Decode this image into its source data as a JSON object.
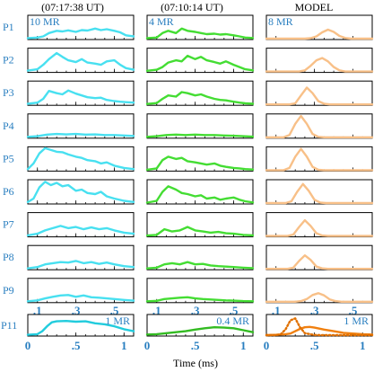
{
  "chart_data": {
    "type": "line",
    "column_titles": [
      "(07:17:38 UT)",
      "(07:10:14 UT)",
      "MODEL"
    ],
    "row_labels": [
      "P1",
      "P2",
      "P3",
      "P4",
      "P5",
      "P6",
      "P7",
      "P8",
      "P9"
    ],
    "bottom_row_label": "P11",
    "xlabel": "Time (ms)",
    "xlim_upper": [
      0.05,
      0.6
    ],
    "xlim_bottom": [
      0,
      1.1
    ],
    "upper_ticks": [
      ".1",
      ".3",
      ".5"
    ],
    "upper_tick_values": [
      0.1,
      0.3,
      0.5
    ],
    "bottom_ticks": [
      "0",
      ".5",
      "1"
    ],
    "bottom_tick_values": [
      0,
      0.5,
      1
    ],
    "ylim": [
      0,
      1
    ],
    "scale_labels": [
      "10 MR",
      "4 MR",
      "8 MR"
    ],
    "bottom_scale_labels": [
      "1 MR",
      "0.4 MR",
      "1 MR"
    ],
    "colors": [
      "#48e0f0",
      "#44dd33",
      "#f8c088"
    ],
    "bottom_colors": [
      "#22ccdd",
      "#33bb22",
      "#f08010"
    ],
    "bottom_dotted_color": "#e07000",
    "panels": [
      [
        {
          "x": [
            0.05,
            0.1,
            0.13,
            0.16,
            0.2,
            0.23,
            0.26,
            0.3,
            0.33,
            0.36,
            0.4,
            0.43,
            0.46,
            0.5,
            0.53,
            0.56,
            0.6
          ],
          "y": [
            0.02,
            0.05,
            0.1,
            0.25,
            0.35,
            0.32,
            0.37,
            0.3,
            0.38,
            0.36,
            0.45,
            0.38,
            0.42,
            0.35,
            0.28,
            0.15,
            0.1
          ]
        },
        {
          "x": [
            0.05,
            0.1,
            0.13,
            0.16,
            0.2,
            0.23,
            0.26,
            0.3,
            0.33,
            0.36,
            0.4,
            0.43,
            0.46,
            0.5,
            0.53,
            0.56,
            0.6
          ],
          "y": [
            0.04,
            0.1,
            0.3,
            0.55,
            0.82,
            0.65,
            0.5,
            0.42,
            0.55,
            0.4,
            0.35,
            0.3,
            0.45,
            0.5,
            0.3,
            0.15,
            0.08
          ]
        },
        {
          "x": [
            0.05,
            0.1,
            0.13,
            0.16,
            0.2,
            0.23,
            0.26,
            0.3,
            0.33,
            0.36,
            0.4,
            0.43,
            0.46,
            0.5,
            0.53,
            0.56,
            0.6
          ],
          "y": [
            0.03,
            0.08,
            0.25,
            0.6,
            0.5,
            0.45,
            0.62,
            0.48,
            0.4,
            0.32,
            0.28,
            0.3,
            0.2,
            0.15,
            0.12,
            0.1,
            0.08
          ]
        },
        {
          "x": [
            0.05,
            0.1,
            0.15,
            0.2,
            0.25,
            0.3,
            0.35,
            0.4,
            0.45,
            0.5,
            0.55,
            0.6
          ],
          "y": [
            0.02,
            0.05,
            0.12,
            0.15,
            0.13,
            0.15,
            0.12,
            0.13,
            0.1,
            0.1,
            0.08,
            0.06
          ]
        },
        {
          "x": [
            0.05,
            0.08,
            0.11,
            0.14,
            0.17,
            0.2,
            0.23,
            0.26,
            0.3,
            0.33,
            0.36,
            0.4,
            0.43,
            0.46,
            0.5,
            0.55,
            0.6
          ],
          "y": [
            0.05,
            0.3,
            0.75,
            0.98,
            0.9,
            0.82,
            0.8,
            0.7,
            0.6,
            0.55,
            0.45,
            0.4,
            0.3,
            0.35,
            0.2,
            0.1,
            0.05
          ]
        },
        {
          "x": [
            0.05,
            0.08,
            0.11,
            0.14,
            0.17,
            0.2,
            0.23,
            0.26,
            0.3,
            0.33,
            0.36,
            0.4,
            0.43,
            0.46,
            0.5,
            0.55,
            0.6
          ],
          "y": [
            0.05,
            0.2,
            0.7,
            0.95,
            0.8,
            0.9,
            0.75,
            0.8,
            0.55,
            0.6,
            0.45,
            0.4,
            0.5,
            0.3,
            0.2,
            0.1,
            0.05
          ]
        },
        {
          "x": [
            0.05,
            0.1,
            0.14,
            0.18,
            0.22,
            0.26,
            0.3,
            0.34,
            0.38,
            0.42,
            0.46,
            0.5,
            0.55,
            0.6
          ],
          "y": [
            0.03,
            0.1,
            0.25,
            0.35,
            0.45,
            0.35,
            0.4,
            0.3,
            0.38,
            0.3,
            0.35,
            0.25,
            0.15,
            0.1
          ]
        },
        {
          "x": [
            0.05,
            0.1,
            0.14,
            0.18,
            0.22,
            0.26,
            0.3,
            0.34,
            0.38,
            0.42,
            0.46,
            0.5,
            0.55,
            0.6
          ],
          "y": [
            0.02,
            0.08,
            0.2,
            0.25,
            0.3,
            0.28,
            0.35,
            0.25,
            0.3,
            0.22,
            0.28,
            0.2,
            0.12,
            0.08
          ]
        },
        {
          "x": [
            0.05,
            0.1,
            0.14,
            0.18,
            0.22,
            0.26,
            0.3,
            0.34,
            0.38,
            0.42,
            0.46,
            0.5,
            0.55,
            0.6
          ],
          "y": [
            0.02,
            0.06,
            0.15,
            0.22,
            0.28,
            0.3,
            0.22,
            0.28,
            0.2,
            0.18,
            0.15,
            0.12,
            0.08,
            0.05
          ]
        }
      ],
      [
        {
          "x": [
            0.05,
            0.1,
            0.13,
            0.16,
            0.2,
            0.23,
            0.26,
            0.3,
            0.33,
            0.36,
            0.4,
            0.43,
            0.46,
            0.5,
            0.53,
            0.56,
            0.6
          ],
          "y": [
            0.02,
            0.05,
            0.25,
            0.35,
            0.25,
            0.45,
            0.35,
            0.3,
            0.25,
            0.2,
            0.22,
            0.18,
            0.2,
            0.15,
            0.1,
            0.05,
            0.03
          ]
        },
        {
          "x": [
            0.05,
            0.1,
            0.13,
            0.16,
            0.2,
            0.23,
            0.26,
            0.3,
            0.33,
            0.36,
            0.4,
            0.43,
            0.46,
            0.5,
            0.53,
            0.56,
            0.6
          ],
          "y": [
            0.03,
            0.08,
            0.2,
            0.4,
            0.5,
            0.45,
            0.7,
            0.55,
            0.65,
            0.5,
            0.42,
            0.35,
            0.45,
            0.3,
            0.2,
            0.1,
            0.05
          ]
        },
        {
          "x": [
            0.05,
            0.1,
            0.13,
            0.16,
            0.2,
            0.23,
            0.26,
            0.3,
            0.33,
            0.36,
            0.4,
            0.43,
            0.46,
            0.5,
            0.53,
            0.56,
            0.6
          ],
          "y": [
            0.02,
            0.06,
            0.25,
            0.4,
            0.35,
            0.55,
            0.5,
            0.4,
            0.45,
            0.35,
            0.25,
            0.2,
            0.18,
            0.12,
            0.08,
            0.05,
            0.03
          ]
        },
        {
          "x": [
            0.05,
            0.1,
            0.15,
            0.2,
            0.25,
            0.3,
            0.35,
            0.4,
            0.45,
            0.5,
            0.55,
            0.6
          ],
          "y": [
            0.02,
            0.05,
            0.1,
            0.12,
            0.1,
            0.12,
            0.1,
            0.1,
            0.08,
            0.07,
            0.05,
            0.03
          ]
        },
        {
          "x": [
            0.05,
            0.1,
            0.13,
            0.16,
            0.2,
            0.23,
            0.26,
            0.3,
            0.33,
            0.36,
            0.4,
            0.43,
            0.46,
            0.5,
            0.53,
            0.56,
            0.6
          ],
          "y": [
            0.02,
            0.08,
            0.45,
            0.6,
            0.5,
            0.55,
            0.4,
            0.35,
            0.3,
            0.25,
            0.3,
            0.2,
            0.15,
            0.1,
            0.08,
            0.05,
            0.03
          ]
        },
        {
          "x": [
            0.05,
            0.1,
            0.13,
            0.16,
            0.2,
            0.23,
            0.26,
            0.3,
            0.33,
            0.36,
            0.4,
            0.43,
            0.46,
            0.5,
            0.53,
            0.56,
            0.6
          ],
          "y": [
            0.02,
            0.1,
            0.5,
            0.75,
            0.6,
            0.45,
            0.4,
            0.3,
            0.35,
            0.2,
            0.25,
            0.15,
            0.2,
            0.25,
            0.15,
            0.08,
            0.03
          ]
        },
        {
          "x": [
            0.05,
            0.1,
            0.14,
            0.18,
            0.22,
            0.26,
            0.3,
            0.34,
            0.38,
            0.42,
            0.46,
            0.5,
            0.55,
            0.6
          ],
          "y": [
            0.02,
            0.05,
            0.3,
            0.2,
            0.25,
            0.4,
            0.25,
            0.2,
            0.15,
            0.18,
            0.12,
            0.1,
            0.05,
            0.03
          ]
        },
        {
          "x": [
            0.05,
            0.1,
            0.14,
            0.18,
            0.22,
            0.26,
            0.3,
            0.34,
            0.38,
            0.42,
            0.46,
            0.5,
            0.55,
            0.6
          ],
          "y": [
            0.02,
            0.05,
            0.2,
            0.25,
            0.2,
            0.3,
            0.2,
            0.22,
            0.15,
            0.12,
            0.1,
            0.08,
            0.05,
            0.03
          ]
        },
        {
          "x": [
            0.05,
            0.1,
            0.14,
            0.18,
            0.22,
            0.26,
            0.3,
            0.34,
            0.38,
            0.42,
            0.46,
            0.5,
            0.55,
            0.6
          ],
          "y": [
            0.02,
            0.04,
            0.12,
            0.15,
            0.18,
            0.2,
            0.15,
            0.12,
            0.1,
            0.08,
            0.06,
            0.05,
            0.03,
            0.02
          ]
        }
      ],
      [
        {
          "x": [
            0.05,
            0.25,
            0.28,
            0.31,
            0.34,
            0.37,
            0.4,
            0.43,
            0.46,
            0.49,
            0.6
          ],
          "y": [
            0,
            0,
            0.02,
            0.1,
            0.28,
            0.4,
            0.3,
            0.12,
            0.03,
            0,
            0
          ]
        },
        {
          "x": [
            0.05,
            0.22,
            0.25,
            0.28,
            0.31,
            0.34,
            0.37,
            0.4,
            0.43,
            0.46,
            0.6
          ],
          "y": [
            0,
            0,
            0.05,
            0.25,
            0.5,
            0.6,
            0.45,
            0.2,
            0.05,
            0,
            0
          ]
        },
        {
          "x": [
            0.05,
            0.17,
            0.2,
            0.23,
            0.26,
            0.29,
            0.32,
            0.35,
            0.38,
            0.6
          ],
          "y": [
            0,
            0,
            0.05,
            0.4,
            0.75,
            0.5,
            0.15,
            0.03,
            0,
            0
          ]
        },
        {
          "x": [
            0.05,
            0.14,
            0.17,
            0.2,
            0.23,
            0.26,
            0.29,
            0.32,
            0.35,
            0.6
          ],
          "y": [
            0,
            0,
            0.1,
            0.6,
            0.95,
            0.6,
            0.15,
            0.02,
            0,
            0
          ]
        },
        {
          "x": [
            0.05,
            0.14,
            0.17,
            0.2,
            0.23,
            0.26,
            0.29,
            0.32,
            0.35,
            0.6
          ],
          "y": [
            0,
            0,
            0.1,
            0.6,
            0.95,
            0.6,
            0.15,
            0.02,
            0,
            0
          ]
        },
        {
          "x": [
            0.05,
            0.15,
            0.18,
            0.21,
            0.24,
            0.27,
            0.3,
            0.33,
            0.36,
            0.6
          ],
          "y": [
            0,
            0,
            0.08,
            0.5,
            0.85,
            0.55,
            0.15,
            0.02,
            0,
            0
          ]
        },
        {
          "x": [
            0.05,
            0.16,
            0.19,
            0.22,
            0.25,
            0.28,
            0.31,
            0.34,
            0.37,
            0.6
          ],
          "y": [
            0,
            0,
            0.06,
            0.4,
            0.7,
            0.45,
            0.12,
            0.02,
            0,
            0
          ]
        },
        {
          "x": [
            0.05,
            0.16,
            0.19,
            0.22,
            0.25,
            0.28,
            0.31,
            0.34,
            0.37,
            0.6
          ],
          "y": [
            0,
            0,
            0.05,
            0.35,
            0.6,
            0.4,
            0.1,
            0.02,
            0,
            0
          ]
        },
        {
          "x": [
            0.05,
            0.2,
            0.23,
            0.26,
            0.29,
            0.32,
            0.35,
            0.38,
            0.41,
            0.44,
            0.6
          ],
          "y": [
            0,
            0,
            0.03,
            0.12,
            0.3,
            0.38,
            0.28,
            0.1,
            0.03,
            0,
            0
          ]
        }
      ]
    ],
    "bottom_panels": [
      {
        "x": [
          0,
          0.1,
          0.15,
          0.2,
          0.25,
          0.3,
          0.4,
          0.5,
          0.6,
          0.7,
          0.8,
          0.9,
          1.0,
          1.1
        ],
        "y": [
          0.02,
          0.05,
          0.2,
          0.45,
          0.65,
          0.7,
          0.72,
          0.68,
          0.7,
          0.6,
          0.55,
          0.45,
          0.3,
          0.2
        ]
      },
      {
        "x": [
          0,
          0.1,
          0.2,
          0.3,
          0.4,
          0.5,
          0.6,
          0.7,
          0.8,
          0.9,
          1.0,
          1.1
        ],
        "y": [
          0.03,
          0.05,
          0.1,
          0.15,
          0.2,
          0.28,
          0.35,
          0.4,
          0.38,
          0.35,
          0.25,
          0.15
        ]
      },
      {
        "x": [
          0,
          0.1,
          0.2,
          0.25,
          0.3,
          0.35,
          0.4,
          0.45,
          0.5,
          0.6,
          0.7,
          0.8,
          0.9,
          1.0,
          1.1
        ],
        "y": [
          0,
          0.02,
          0.05,
          0.08,
          0.2,
          0.32,
          0.4,
          0.42,
          0.38,
          0.28,
          0.2,
          0.12,
          0.08,
          0.05,
          0.03
        ]
      }
    ],
    "bottom_dotted": {
      "x": [
        0,
        0.1,
        0.15,
        0.2,
        0.25,
        0.3,
        0.35,
        0.4,
        0.5,
        0.6,
        1.1
      ],
      "y": [
        0,
        0,
        0.05,
        0.3,
        0.75,
        0.85,
        0.4,
        0.1,
        0.01,
        0,
        0
      ]
    }
  }
}
